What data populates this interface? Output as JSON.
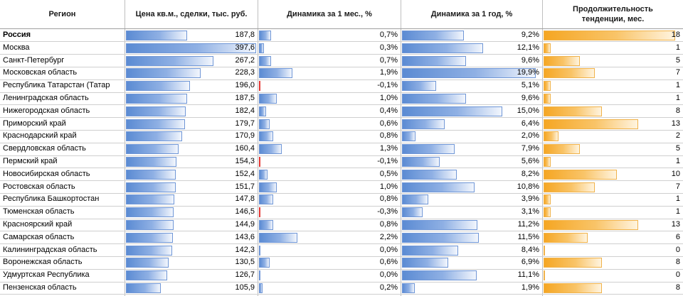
{
  "headers": {
    "region": "Регион",
    "price": "Цена кв.м., сделки, тыс. руб.",
    "dyn_month": "Динамика за 1 мес., %",
    "dyn_year": "Динамика за 1 год, %",
    "duration_line1": "Продолжительность",
    "duration_line2": "тенденции, мес."
  },
  "colors": {
    "bar_blue": "#5b8bd3",
    "bar_negative": "#e53935",
    "bar_orange": "#f5a623",
    "grid": "#bfbfbf"
  },
  "chart_data": {
    "type": "table",
    "columns": [
      "Регион",
      "Цена кв.м., сделки, тыс. руб.",
      "Динамика за 1 мес., %",
      "Динамика за 1 год, %",
      "Продолжительность тенденции, мес."
    ],
    "rows": [
      {
        "region": "Россия",
        "price": 187.8,
        "price_text": "187,8",
        "month": 0.7,
        "month_text": "0,7%",
        "year": 9.2,
        "year_text": "9,2%",
        "duration": 18,
        "bold": true
      },
      {
        "region": "Москва",
        "price": 397.6,
        "price_text": "397,6",
        "month": 0.3,
        "month_text": "0,3%",
        "year": 12.1,
        "year_text": "12,1%",
        "duration": 1
      },
      {
        "region": "Санкт-Петербург",
        "price": 267.2,
        "price_text": "267,2",
        "month": 0.7,
        "month_text": "0,7%",
        "year": 9.6,
        "year_text": "9,6%",
        "duration": 5
      },
      {
        "region": "Московская область",
        "price": 228.3,
        "price_text": "228,3",
        "month": 1.9,
        "month_text": "1,9%",
        "year": 19.9,
        "year_text": "19,9%",
        "duration": 7
      },
      {
        "region": "Республика Татарстан (Татар",
        "price": 196.0,
        "price_text": "196,0",
        "month": -0.1,
        "month_text": "-0,1%",
        "year": 5.1,
        "year_text": "5,1%",
        "duration": 1
      },
      {
        "region": "Ленинградская область",
        "price": 187.5,
        "price_text": "187,5",
        "month": 1.0,
        "month_text": "1,0%",
        "year": 9.6,
        "year_text": "9,6%",
        "duration": 1
      },
      {
        "region": "Нижегородская область",
        "price": 182.4,
        "price_text": "182,4",
        "month": 0.4,
        "month_text": "0,4%",
        "year": 15.0,
        "year_text": "15,0%",
        "duration": 8
      },
      {
        "region": "Приморский край",
        "price": 179.7,
        "price_text": "179,7",
        "month": 0.6,
        "month_text": "0,6%",
        "year": 6.4,
        "year_text": "6,4%",
        "duration": 13
      },
      {
        "region": "Краснодарский край",
        "price": 170.9,
        "price_text": "170,9",
        "month": 0.8,
        "month_text": "0,8%",
        "year": 2.0,
        "year_text": "2,0%",
        "duration": 2
      },
      {
        "region": "Свердловская область",
        "price": 160.4,
        "price_text": "160,4",
        "month": 1.3,
        "month_text": "1,3%",
        "year": 7.9,
        "year_text": "7,9%",
        "duration": 5
      },
      {
        "region": "Пермский край",
        "price": 154.3,
        "price_text": "154,3",
        "month": -0.1,
        "month_text": "-0,1%",
        "year": 5.6,
        "year_text": "5,6%",
        "duration": 1
      },
      {
        "region": "Новосибирская область",
        "price": 152.4,
        "price_text": "152,4",
        "month": 0.5,
        "month_text": "0,5%",
        "year": 8.2,
        "year_text": "8,2%",
        "duration": 10
      },
      {
        "region": "Ростовская область",
        "price": 151.7,
        "price_text": "151,7",
        "month": 1.0,
        "month_text": "1,0%",
        "year": 10.8,
        "year_text": "10,8%",
        "duration": 7
      },
      {
        "region": "Республика Башкортостан",
        "price": 147.8,
        "price_text": "147,8",
        "month": 0.8,
        "month_text": "0,8%",
        "year": 3.9,
        "year_text": "3,9%",
        "duration": 1
      },
      {
        "region": "Тюменская область",
        "price": 146.5,
        "price_text": "146,5",
        "month": -0.3,
        "month_text": "-0,3%",
        "year": 3.1,
        "year_text": "3,1%",
        "duration": 1
      },
      {
        "region": "Красноярский край",
        "price": 144.9,
        "price_text": "144,9",
        "month": 0.8,
        "month_text": "0,8%",
        "year": 11.2,
        "year_text": "11,2%",
        "duration": 13
      },
      {
        "region": "Самарская область",
        "price": 143.6,
        "price_text": "143,6",
        "month": 2.2,
        "month_text": "2,2%",
        "year": 11.5,
        "year_text": "11,5%",
        "duration": 6
      },
      {
        "region": "Калининградская область",
        "price": 142.3,
        "price_text": "142,3",
        "month": 0.0,
        "month_text": "0,0%",
        "year": 8.4,
        "year_text": "8,4%",
        "duration": 0
      },
      {
        "region": "Воронежская область",
        "price": 130.5,
        "price_text": "130,5",
        "month": 0.6,
        "month_text": "0,6%",
        "year": 6.9,
        "year_text": "6,9%",
        "duration": 8
      },
      {
        "region": "Удмуртская Республика",
        "price": 126.7,
        "price_text": "126,7",
        "month": 0.0,
        "month_text": "0,0%",
        "year": 11.1,
        "year_text": "11,1%",
        "duration": 0
      },
      {
        "region": "Пензенская область",
        "price": 105.9,
        "price_text": "105,9",
        "month": 0.2,
        "month_text": "0,2%",
        "year": 1.9,
        "year_text": "1,9%",
        "duration": 8
      }
    ]
  }
}
